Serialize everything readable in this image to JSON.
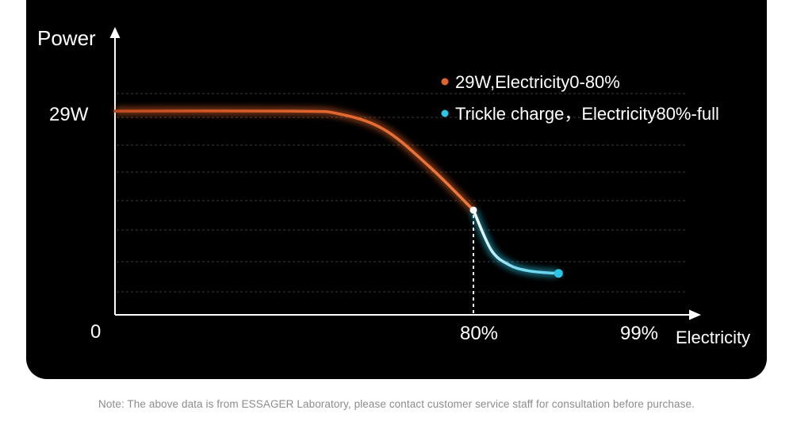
{
  "chart_data": {
    "type": "line",
    "ylabel": "Power",
    "xlabel": "Electricity",
    "y_tick_labels": [
      "29W"
    ],
    "origin_label": "0",
    "x_tick_labels": [
      "80%",
      "99%"
    ],
    "legend": [
      "29W,Electricity0-80%",
      "Trickle charge，Electricity80%-full"
    ],
    "legend_placement": "top-right",
    "grid": "dashed horizontal",
    "series": [
      {
        "name": "29W,Electricity0-80%",
        "color": "#e0642c",
        "x": [
          0,
          40,
          50,
          60,
          70,
          80
        ],
        "y": [
          29,
          29,
          28.6,
          26.4,
          21.2,
          14.9
        ]
      },
      {
        "name": "Trickle charge，Electricity80%-full",
        "color": "#2bc6e6",
        "x": [
          80,
          84,
          88,
          92,
          96,
          99
        ],
        "y": [
          14.9,
          9.2,
          7.1,
          6.3,
          6.0,
          5.9
        ]
      }
    ]
  },
  "footer": {
    "note": "Note: The above data is from ESSAGER Laboratory, please contact customer service staff for consultation before purchase."
  }
}
